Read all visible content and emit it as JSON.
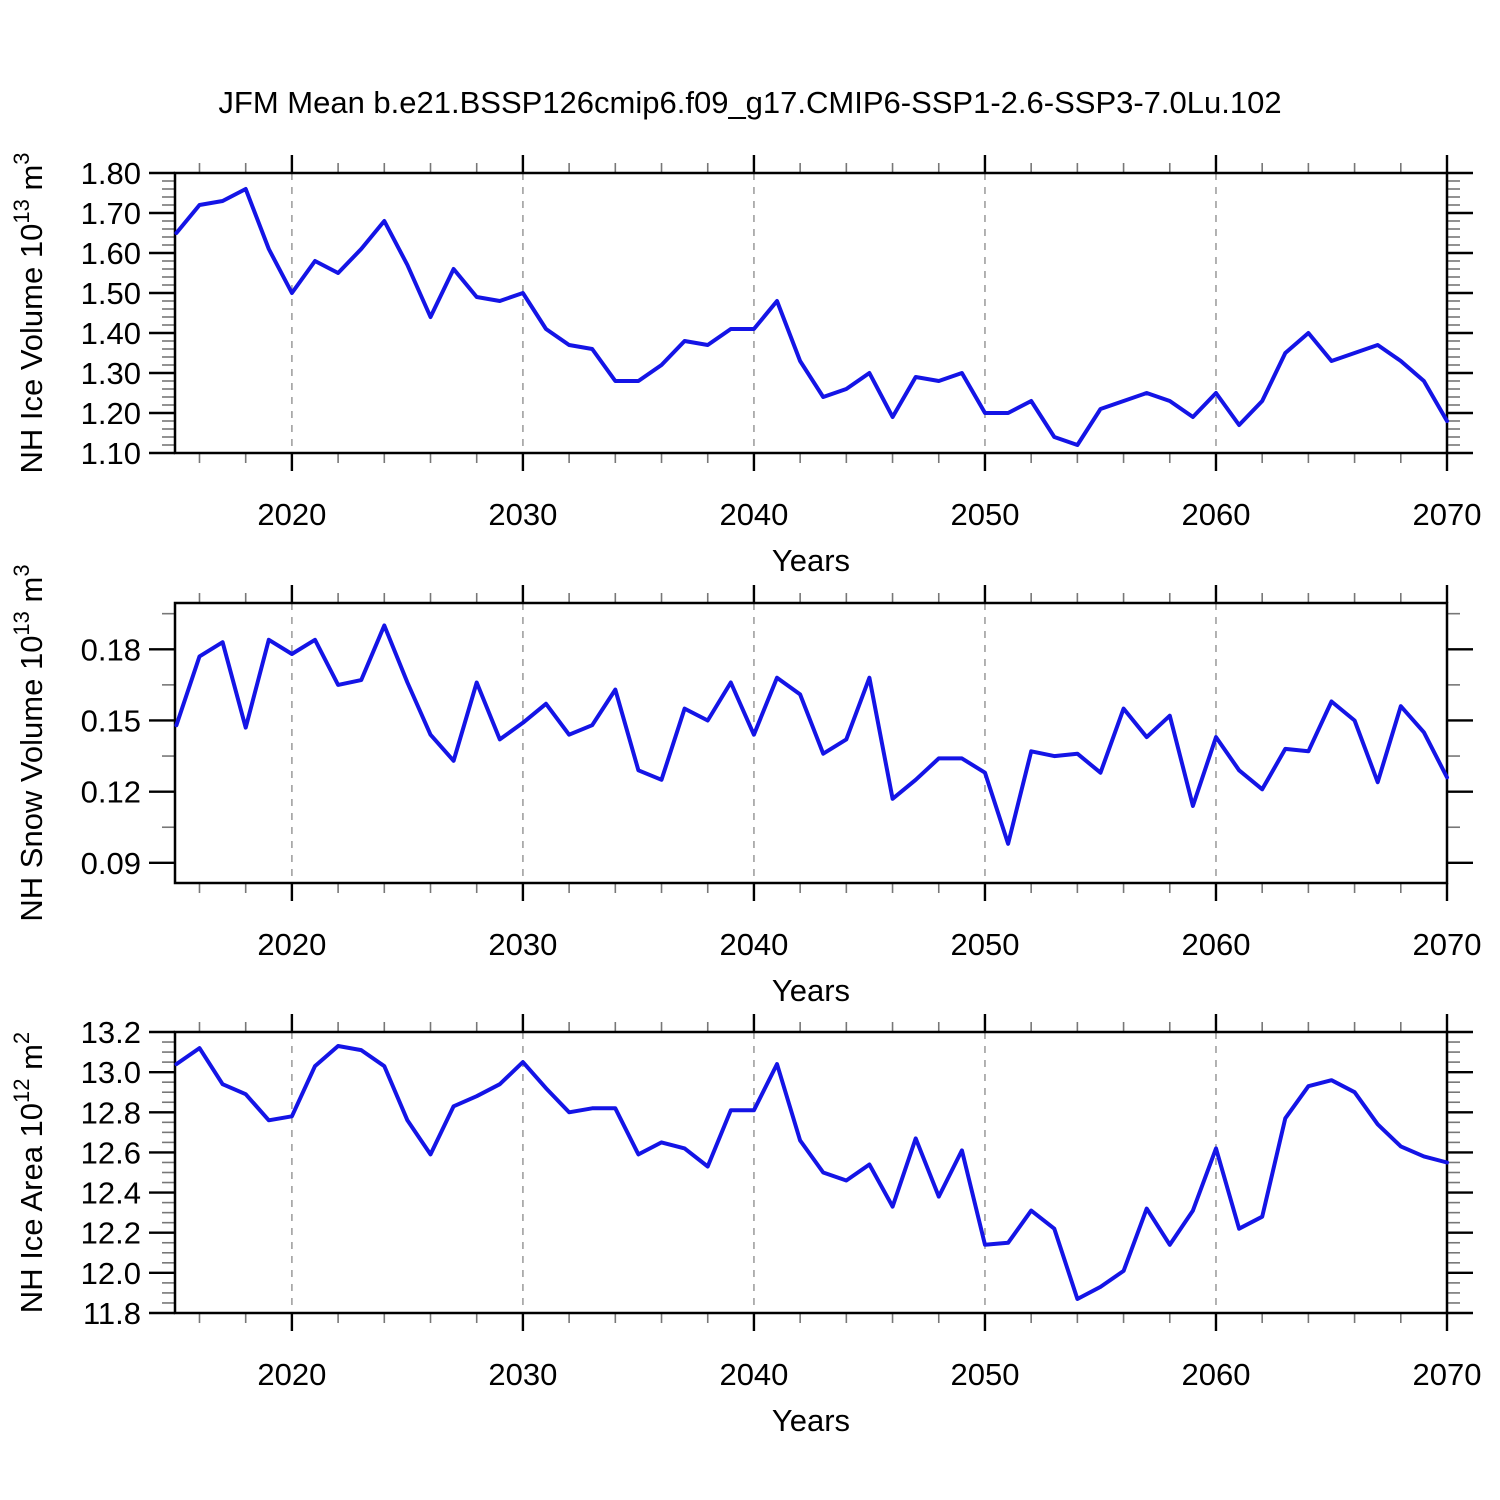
{
  "title": "JFM Mean b.e21.BSSP126cmip6.f09_g17.CMIP6-SSP1-2.6-SSP3-7.0Lu.102",
  "colors": {
    "line": "#1414e6",
    "grid": "#999999",
    "axis": "#000000",
    "minor_tick": "#777777"
  },
  "x_years": {
    "start": 2015,
    "end": 2070,
    "step": 1
  },
  "chart_data": [
    {
      "type": "line",
      "panel": "nh-ice-volume",
      "xlabel": "Years",
      "ylabel": "NH Ice Volume 10¹³ m³",
      "ylabel_parts": [
        {
          "text": "NH Ice Volume 10"
        },
        {
          "text": "13",
          "sup": true
        },
        {
          "text": " m"
        },
        {
          "text": "3",
          "sup": true
        }
      ],
      "xlim": [
        2014.94,
        2070
      ],
      "ylim": [
        1.1,
        1.8
      ],
      "xticks": [
        2020,
        2030,
        2040,
        2050,
        2060,
        2070
      ],
      "xtick_labels": [
        "2020",
        "2030",
        "2040",
        "2050",
        "2060",
        "2070"
      ],
      "x_minor_step": 2,
      "ytick_values": [
        1.1,
        1.2,
        1.3,
        1.4,
        1.5,
        1.6,
        1.7,
        1.8
      ],
      "ytick_labels": [
        "1.10",
        "1.20",
        "1.30",
        "1.40",
        "1.50",
        "1.60",
        "1.70",
        "1.80"
      ],
      "y_minor_step": 0.02,
      "grid_x_years": [
        2020,
        2030,
        2040,
        2050,
        2060
      ],
      "grid_on": true,
      "legend": "none",
      "values": [
        1.65,
        1.72,
        1.73,
        1.76,
        1.61,
        1.5,
        1.58,
        1.55,
        1.61,
        1.68,
        1.57,
        1.44,
        1.56,
        1.49,
        1.48,
        1.5,
        1.41,
        1.37,
        1.36,
        1.28,
        1.28,
        1.32,
        1.38,
        1.37,
        1.41,
        1.41,
        1.48,
        1.33,
        1.24,
        1.26,
        1.3,
        1.19,
        1.29,
        1.28,
        1.3,
        1.2,
        1.2,
        1.23,
        1.14,
        1.12,
        1.21,
        1.23,
        1.25,
        1.23,
        1.19,
        1.25,
        1.17,
        1.23,
        1.35,
        1.4,
        1.33,
        1.35,
        1.37,
        1.33,
        1.28,
        1.18
      ]
    },
    {
      "type": "line",
      "panel": "nh-snow-volume",
      "xlabel": "Years",
      "ylabel": "NH Snow Volume 10¹³ m³",
      "ylabel_parts": [
        {
          "text": "NH Snow Volume 10"
        },
        {
          "text": "13",
          "sup": true
        },
        {
          "text": " m"
        },
        {
          "text": "3",
          "sup": true
        }
      ],
      "xlim": [
        2014.94,
        2070
      ],
      "ylim": [
        0.0815,
        0.1995
      ],
      "xticks": [
        2020,
        2030,
        2040,
        2050,
        2060,
        2070
      ],
      "xtick_labels": [
        "2020",
        "2030",
        "2040",
        "2050",
        "2060",
        "2070"
      ],
      "x_minor_step": 2,
      "ytick_values": [
        0.09,
        0.12,
        0.15,
        0.18
      ],
      "ytick_labels": [
        "0.09",
        "0.12",
        "0.15",
        "0.18"
      ],
      "y_minor_step": 0.015,
      "grid_x_years": [
        2020,
        2030,
        2040,
        2050,
        2060
      ],
      "grid_on": true,
      "legend": "none",
      "values": [
        0.148,
        0.177,
        0.183,
        0.147,
        0.184,
        0.178,
        0.184,
        0.165,
        0.167,
        0.19,
        0.166,
        0.144,
        0.133,
        0.166,
        0.142,
        0.149,
        0.157,
        0.144,
        0.148,
        0.163,
        0.129,
        0.125,
        0.155,
        0.15,
        0.166,
        0.144,
        0.168,
        0.161,
        0.136,
        0.142,
        0.168,
        0.117,
        0.125,
        0.134,
        0.134,
        0.128,
        0.098,
        0.137,
        0.135,
        0.136,
        0.128,
        0.155,
        0.143,
        0.152,
        0.114,
        0.143,
        0.129,
        0.121,
        0.138,
        0.137,
        0.158,
        0.15,
        0.124,
        0.156,
        0.145,
        0.126
      ]
    },
    {
      "type": "line",
      "panel": "nh-ice-area",
      "xlabel": "Years",
      "ylabel": "NH Ice Area 10¹² m²",
      "ylabel_parts": [
        {
          "text": "NH Ice Area 10"
        },
        {
          "text": "12",
          "sup": true
        },
        {
          "text": " m"
        },
        {
          "text": "2",
          "sup": true
        }
      ],
      "xlim": [
        2014.94,
        2070
      ],
      "ylim": [
        11.8,
        13.2
      ],
      "xticks": [
        2020,
        2030,
        2040,
        2050,
        2060,
        2070
      ],
      "xtick_labels": [
        "2020",
        "2030",
        "2040",
        "2050",
        "2060",
        "2070"
      ],
      "x_minor_step": 2,
      "ytick_values": [
        11.8,
        12.0,
        12.2,
        12.4,
        12.6,
        12.8,
        13.0,
        13.2
      ],
      "ytick_labels": [
        "11.8",
        "12.0",
        "12.2",
        "12.4",
        "12.6",
        "12.8",
        "13.0",
        "13.2"
      ],
      "y_minor_step": 0.05,
      "grid_x_years": [
        2020,
        2030,
        2040,
        2050,
        2060
      ],
      "grid_on": true,
      "legend": "none",
      "values": [
        13.04,
        13.12,
        12.94,
        12.89,
        12.76,
        12.78,
        13.03,
        13.13,
        13.11,
        13.03,
        12.76,
        12.59,
        12.83,
        12.88,
        12.94,
        13.05,
        12.92,
        12.8,
        12.82,
        12.82,
        12.59,
        12.65,
        12.62,
        12.53,
        12.81,
        12.81,
        13.04,
        12.66,
        12.5,
        12.46,
        12.54,
        12.33,
        12.67,
        12.38,
        12.61,
        12.14,
        12.15,
        12.31,
        12.22,
        11.87,
        11.93,
        12.01,
        12.32,
        12.14,
        12.31,
        12.62,
        12.22,
        12.28,
        12.77,
        12.93,
        12.96,
        12.9,
        12.74,
        12.63,
        12.58,
        12.55
      ]
    }
  ]
}
